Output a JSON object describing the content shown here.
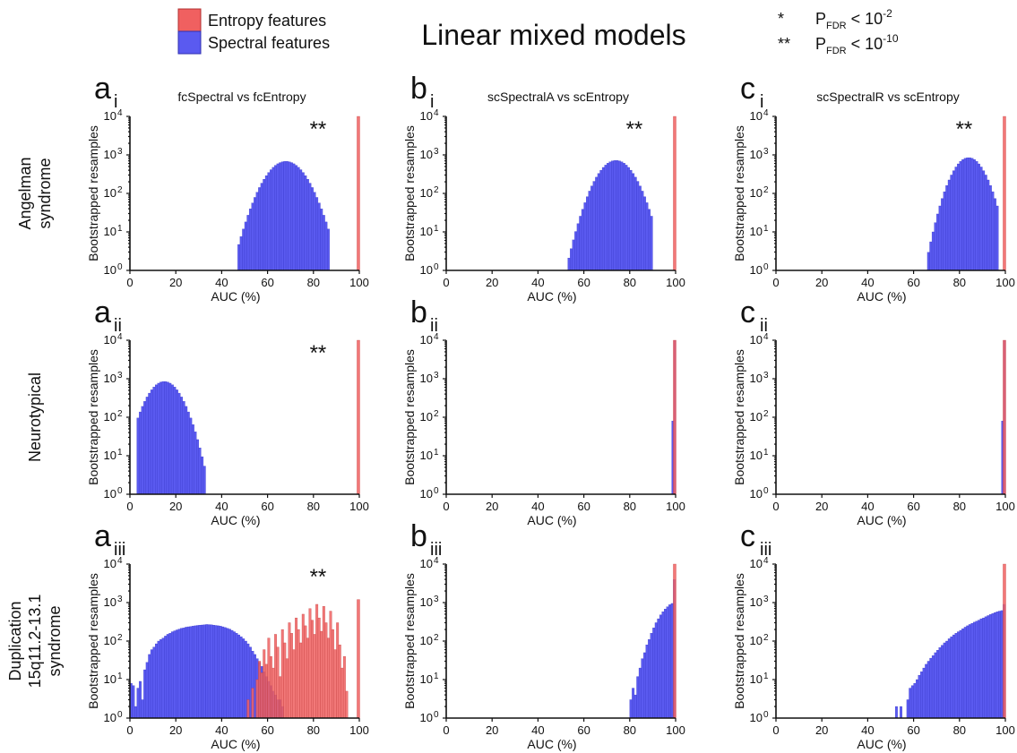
{
  "title": "Linear mixed models",
  "colors": {
    "entropy": "#f06060",
    "spectral": "#5a5af0",
    "overlap": "#7a2a8a"
  },
  "legend": [
    {
      "label": "Entropy features",
      "color": "#f06060"
    },
    {
      "label": "Spectral features",
      "color": "#5a5af0"
    }
  ],
  "significance": [
    {
      "symbol": "*",
      "p": "P",
      "sub": "FDR",
      "lt": " < 10",
      "exp": "-2"
    },
    {
      "symbol": "**",
      "p": "P",
      "sub": "FDR",
      "lt": " < 10",
      "exp": "-10"
    }
  ],
  "rows": [
    "Angelman\nsyndrome",
    "Neurotypical",
    "Duplication\n15q11.2-13.1\nsyndrome"
  ],
  "xlabel": "AUC (%)",
  "ylabel": "Bootstrapped resamples",
  "xticks": [
    "0",
    "20",
    "40",
    "60",
    "80",
    "100"
  ],
  "yticks": [
    "0",
    "1",
    "2",
    "3",
    "4"
  ],
  "chart_data": [
    {
      "type": "bar",
      "letter": "a",
      "sub": "i",
      "title": "fcSpectral vs fcEntropy",
      "star": "**",
      "xlim": [
        0,
        100
      ],
      "ylim": [
        1,
        10000
      ],
      "yscale": "log",
      "spectral": {
        "kind": "gauss",
        "range": [
          47,
          87
        ],
        "mu": 68,
        "sigma": 6.5,
        "peak": 680
      },
      "entropy": [
        {
          "x": 99.6,
          "y": 10000
        }
      ]
    },
    {
      "type": "bar",
      "letter": "b",
      "sub": "i",
      "title": "scSpectralA vs scEntropy",
      "star": "**",
      "xlim": [
        0,
        100
      ],
      "ylim": [
        1,
        10000
      ],
      "yscale": "log",
      "spectral": {
        "kind": "gauss",
        "range": [
          53,
          90
        ],
        "mu": 74,
        "sigma": 6,
        "peak": 720
      },
      "entropy": [
        {
          "x": 99.6,
          "y": 10000
        }
      ]
    },
    {
      "type": "bar",
      "letter": "c",
      "sub": "i",
      "title": "scSpectralR vs scEntropy",
      "star": "**",
      "xlim": [
        0,
        100
      ],
      "ylim": [
        1,
        10000
      ],
      "yscale": "log",
      "spectral": {
        "kind": "gauss",
        "range": [
          66,
          97
        ],
        "mu": 84,
        "sigma": 5.2,
        "peak": 850
      },
      "entropy": [
        {
          "x": 99.6,
          "y": 10000
        }
      ]
    },
    {
      "type": "bar",
      "letter": "a",
      "sub": "ii",
      "title": "",
      "star": "**",
      "xlim": [
        0,
        100
      ],
      "ylim": [
        1,
        10000
      ],
      "yscale": "log",
      "spectral": {
        "kind": "gauss",
        "range": [
          3,
          33
        ],
        "mu": 15,
        "sigma": 5.5,
        "peak": 850
      },
      "entropy": [
        {
          "x": 99.6,
          "y": 10000
        }
      ]
    },
    {
      "type": "bar",
      "letter": "b",
      "sub": "ii",
      "title": "",
      "star": "",
      "xlim": [
        0,
        100
      ],
      "ylim": [
        1,
        10000
      ],
      "yscale": "log",
      "spectral": {
        "kind": "list",
        "bars": [
          {
            "x": 98.8,
            "y": 80
          },
          {
            "x": 99.6,
            "y": 9900
          }
        ]
      },
      "entropy": [
        {
          "x": 99.6,
          "y": 10000
        }
      ]
    },
    {
      "type": "bar",
      "letter": "c",
      "sub": "ii",
      "title": "",
      "star": "",
      "xlim": [
        0,
        100
      ],
      "ylim": [
        1,
        10000
      ],
      "yscale": "log",
      "spectral": {
        "kind": "list",
        "bars": [
          {
            "x": 98.8,
            "y": 80
          },
          {
            "x": 99.6,
            "y": 9900
          }
        ]
      },
      "entropy": [
        {
          "x": 99.6,
          "y": 10000
        }
      ]
    },
    {
      "type": "bar",
      "letter": "a",
      "sub": "iii",
      "title": "",
      "star": "**",
      "xlim": [
        0,
        100
      ],
      "ylim": [
        1,
        10000
      ],
      "yscale": "log",
      "spectral": {
        "kind": "list",
        "bars": [
          {
            "x": 0.5,
            "y": 8
          },
          {
            "x": 1.5,
            "y": 7
          },
          {
            "x": 2.5,
            "y": 2
          },
          {
            "x": 3.5,
            "y": 6
          },
          {
            "x": 4.5,
            "y": 9
          },
          {
            "x": 5.5,
            "y": 3
          },
          {
            "x": 6.5,
            "y": 18
          },
          {
            "x": 7.5,
            "y": 28
          },
          {
            "x": 8.5,
            "y": 45
          },
          {
            "x": 9.5,
            "y": 60
          },
          {
            "x": 10.5,
            "y": 70
          },
          {
            "x": 11.5,
            "y": 85
          },
          {
            "x": 12.5,
            "y": 100
          },
          {
            "x": 13.5,
            "y": 110
          },
          {
            "x": 14.5,
            "y": 120
          },
          {
            "x": 15.5,
            "y": 135
          },
          {
            "x": 16.5,
            "y": 150
          },
          {
            "x": 17.5,
            "y": 160
          },
          {
            "x": 18.5,
            "y": 175
          },
          {
            "x": 19.5,
            "y": 185
          },
          {
            "x": 20.5,
            "y": 195
          },
          {
            "x": 21.5,
            "y": 205
          },
          {
            "x": 22.5,
            "y": 215
          },
          {
            "x": 23.5,
            "y": 220
          },
          {
            "x": 24.5,
            "y": 230
          },
          {
            "x": 25.5,
            "y": 235
          },
          {
            "x": 26.5,
            "y": 240
          },
          {
            "x": 27.5,
            "y": 245
          },
          {
            "x": 28.5,
            "y": 250
          },
          {
            "x": 29.5,
            "y": 255
          },
          {
            "x": 30.5,
            "y": 260
          },
          {
            "x": 31.5,
            "y": 262
          },
          {
            "x": 32.5,
            "y": 265
          },
          {
            "x": 33.5,
            "y": 270
          },
          {
            "x": 34.5,
            "y": 268
          },
          {
            "x": 35.5,
            "y": 265
          },
          {
            "x": 36.5,
            "y": 260
          },
          {
            "x": 37.5,
            "y": 255
          },
          {
            "x": 38.5,
            "y": 250
          },
          {
            "x": 39.5,
            "y": 245
          },
          {
            "x": 40.5,
            "y": 235
          },
          {
            "x": 41.5,
            "y": 225
          },
          {
            "x": 42.5,
            "y": 215
          },
          {
            "x": 43.5,
            "y": 205
          },
          {
            "x": 44.5,
            "y": 190
          },
          {
            "x": 45.5,
            "y": 175
          },
          {
            "x": 46.5,
            "y": 160
          },
          {
            "x": 47.5,
            "y": 145
          },
          {
            "x": 48.5,
            "y": 130
          },
          {
            "x": 49.5,
            "y": 115
          },
          {
            "x": 50.5,
            "y": 100
          },
          {
            "x": 51.5,
            "y": 85
          },
          {
            "x": 52.5,
            "y": 70
          },
          {
            "x": 53.5,
            "y": 55
          },
          {
            "x": 54.5,
            "y": 45
          },
          {
            "x": 55.5,
            "y": 35
          },
          {
            "x": 56.5,
            "y": 28
          },
          {
            "x": 57.5,
            "y": 22
          },
          {
            "x": 58.5,
            "y": 16
          },
          {
            "x": 59.5,
            "y": 12
          },
          {
            "x": 60.5,
            "y": 9
          },
          {
            "x": 61.5,
            "y": 7
          },
          {
            "x": 62.5,
            "y": 5
          },
          {
            "x": 63.5,
            "y": 4
          },
          {
            "x": 64.5,
            "y": 3
          },
          {
            "x": 65.5,
            "y": 3
          },
          {
            "x": 66.5,
            "y": 2
          }
        ]
      },
      "entropy": [
        {
          "x": 51.5,
          "y": 3
        },
        {
          "x": 53.5,
          "y": 6
        },
        {
          "x": 55.5,
          "y": 10
        },
        {
          "x": 56.5,
          "y": 30
        },
        {
          "x": 57.5,
          "y": 15
        },
        {
          "x": 58.5,
          "y": 60
        },
        {
          "x": 59.5,
          "y": 25
        },
        {
          "x": 60.5,
          "y": 120
        },
        {
          "x": 61.5,
          "y": 40
        },
        {
          "x": 62.5,
          "y": 20
        },
        {
          "x": 63.5,
          "y": 150
        },
        {
          "x": 64.5,
          "y": 70
        },
        {
          "x": 65.5,
          "y": 12
        },
        {
          "x": 66.5,
          "y": 200
        },
        {
          "x": 67.5,
          "y": 90
        },
        {
          "x": 68.5,
          "y": 35
        },
        {
          "x": 69.5,
          "y": 300
        },
        {
          "x": 70.5,
          "y": 160
        },
        {
          "x": 71.5,
          "y": 60
        },
        {
          "x": 72.5,
          "y": 400
        },
        {
          "x": 73.5,
          "y": 200
        },
        {
          "x": 74.5,
          "y": 90
        },
        {
          "x": 75.5,
          "y": 500
        },
        {
          "x": 76.5,
          "y": 250
        },
        {
          "x": 77.5,
          "y": 120
        },
        {
          "x": 78.5,
          "y": 700
        },
        {
          "x": 79.5,
          "y": 350
        },
        {
          "x": 80.5,
          "y": 150
        },
        {
          "x": 81.5,
          "y": 900
        },
        {
          "x": 82.5,
          "y": 400
        },
        {
          "x": 83.5,
          "y": 180
        },
        {
          "x": 84.5,
          "y": 800
        },
        {
          "x": 85.5,
          "y": 300
        },
        {
          "x": 86.5,
          "y": 120
        },
        {
          "x": 87.5,
          "y": 600
        },
        {
          "x": 88.5,
          "y": 200
        },
        {
          "x": 89.5,
          "y": 60
        },
        {
          "x": 90.5,
          "y": 300
        },
        {
          "x": 91.5,
          "y": 80
        },
        {
          "x": 92.5,
          "y": 20
        },
        {
          "x": 93.5,
          "y": 40
        },
        {
          "x": 94.5,
          "y": 5
        },
        {
          "x": 99.6,
          "y": 1200
        }
      ]
    },
    {
      "type": "bar",
      "letter": "b",
      "sub": "iii",
      "title": "",
      "star": "",
      "xlim": [
        0,
        100
      ],
      "ylim": [
        1,
        10000
      ],
      "yscale": "log",
      "spectral": {
        "kind": "list",
        "bars": [
          {
            "x": 80.5,
            "y": 3
          },
          {
            "x": 81.5,
            "y": 6
          },
          {
            "x": 82.5,
            "y": 4
          },
          {
            "x": 83.5,
            "y": 12
          },
          {
            "x": 84.5,
            "y": 20
          },
          {
            "x": 85.5,
            "y": 35
          },
          {
            "x": 86.5,
            "y": 50
          },
          {
            "x": 87.5,
            "y": 80
          },
          {
            "x": 88.5,
            "y": 110
          },
          {
            "x": 89.5,
            "y": 160
          },
          {
            "x": 90.5,
            "y": 220
          },
          {
            "x": 91.5,
            "y": 300
          },
          {
            "x": 92.5,
            "y": 380
          },
          {
            "x": 93.5,
            "y": 480
          },
          {
            "x": 94.5,
            "y": 580
          },
          {
            "x": 95.5,
            "y": 680
          },
          {
            "x": 96.5,
            "y": 780
          },
          {
            "x": 97.5,
            "y": 880
          },
          {
            "x": 98.5,
            "y": 950
          },
          {
            "x": 99.5,
            "y": 4000
          }
        ]
      },
      "entropy": [
        {
          "x": 99.6,
          "y": 10000
        }
      ]
    },
    {
      "type": "bar",
      "letter": "c",
      "sub": "iii",
      "title": "",
      "star": "",
      "xlim": [
        0,
        100
      ],
      "ylim": [
        1,
        10000
      ],
      "yscale": "log",
      "spectral": {
        "kind": "list",
        "bars": [
          {
            "x": 52.5,
            "y": 2
          },
          {
            "x": 54.5,
            "y": 2
          },
          {
            "x": 57.5,
            "y": 3
          },
          {
            "x": 58.5,
            "y": 6
          },
          {
            "x": 59.5,
            "y": 7
          },
          {
            "x": 60.5,
            "y": 8
          },
          {
            "x": 61.5,
            "y": 10
          },
          {
            "x": 62.5,
            "y": 13
          },
          {
            "x": 63.5,
            "y": 16
          },
          {
            "x": 64.5,
            "y": 20
          },
          {
            "x": 65.5,
            "y": 25
          },
          {
            "x": 66.5,
            "y": 30
          },
          {
            "x": 67.5,
            "y": 36
          },
          {
            "x": 68.5,
            "y": 42
          },
          {
            "x": 69.5,
            "y": 50
          },
          {
            "x": 70.5,
            "y": 58
          },
          {
            "x": 71.5,
            "y": 68
          },
          {
            "x": 72.5,
            "y": 78
          },
          {
            "x": 73.5,
            "y": 90
          },
          {
            "x": 74.5,
            "y": 100
          },
          {
            "x": 75.5,
            "y": 115
          },
          {
            "x": 76.5,
            "y": 130
          },
          {
            "x": 77.5,
            "y": 145
          },
          {
            "x": 78.5,
            "y": 160
          },
          {
            "x": 79.5,
            "y": 175
          },
          {
            "x": 80.5,
            "y": 190
          },
          {
            "x": 81.5,
            "y": 210
          },
          {
            "x": 82.5,
            "y": 230
          },
          {
            "x": 83.5,
            "y": 250
          },
          {
            "x": 84.5,
            "y": 270
          },
          {
            "x": 85.5,
            "y": 290
          },
          {
            "x": 86.5,
            "y": 310
          },
          {
            "x": 87.5,
            "y": 330
          },
          {
            "x": 88.5,
            "y": 350
          },
          {
            "x": 89.5,
            "y": 380
          },
          {
            "x": 90.5,
            "y": 400
          },
          {
            "x": 91.5,
            "y": 430
          },
          {
            "x": 92.5,
            "y": 460
          },
          {
            "x": 93.5,
            "y": 490
          },
          {
            "x": 94.5,
            "y": 520
          },
          {
            "x": 95.5,
            "y": 550
          },
          {
            "x": 96.5,
            "y": 580
          },
          {
            "x": 97.5,
            "y": 600
          },
          {
            "x": 98.5,
            "y": 620
          },
          {
            "x": 99.5,
            "y": 900
          }
        ]
      },
      "entropy": [
        {
          "x": 99.6,
          "y": 10000
        }
      ]
    }
  ]
}
